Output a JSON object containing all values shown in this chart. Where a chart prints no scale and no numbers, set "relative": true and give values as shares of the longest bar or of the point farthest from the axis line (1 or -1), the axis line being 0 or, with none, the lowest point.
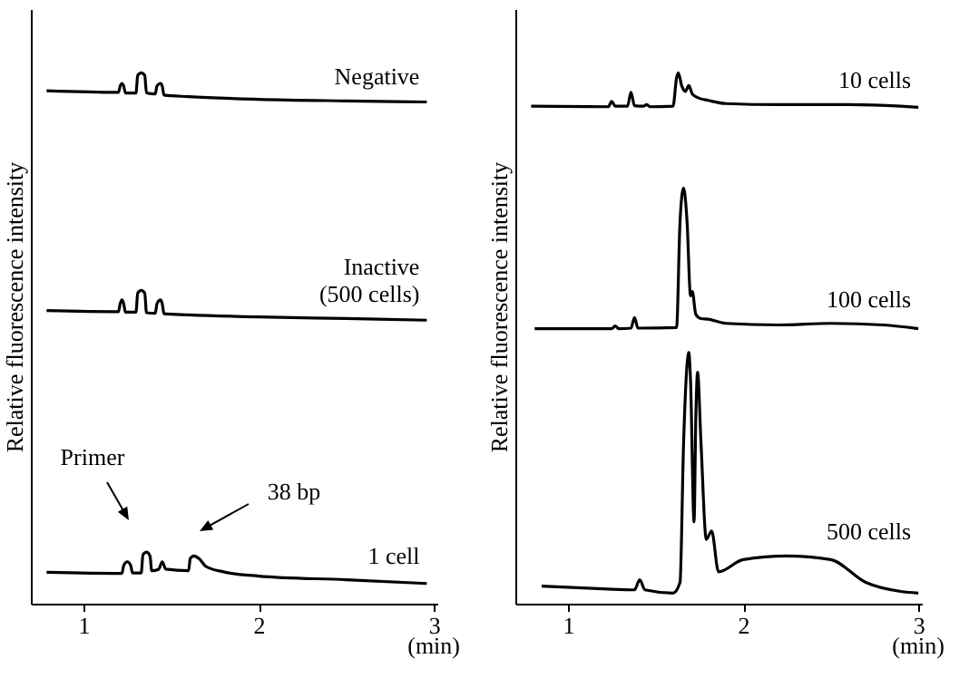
{
  "chart_data": [
    {
      "type": "line",
      "relative": true,
      "xlabel": "(min)",
      "ylabel": "Relative fluorescence intensity",
      "xlim": [
        0.7,
        3.02
      ],
      "xticks": [
        1,
        2,
        3
      ],
      "series": [
        {
          "name": "Negative",
          "color": "#000000",
          "x": [
            0.79,
            1.2,
            1.21,
            1.22,
            1.23,
            1.24,
            1.3,
            1.31,
            1.33,
            1.35,
            1.36,
            1.41,
            1.42,
            1.44,
            1.45,
            1.46,
            1.6,
            2.0,
            2.5,
            2.96
          ],
          "values": [
            0.966,
            0.963,
            0.975,
            0.98,
            0.975,
            0.962,
            0.962,
            0.995,
            1.0,
            0.995,
            0.962,
            0.96,
            0.975,
            0.98,
            0.975,
            0.958,
            0.955,
            0.95,
            0.947,
            0.945
          ]
        },
        {
          "name": "Inactive\n(500 cells)",
          "color": "#000000",
          "x": [
            0.79,
            1.2,
            1.21,
            1.22,
            1.23,
            1.24,
            1.3,
            1.31,
            1.33,
            1.35,
            1.36,
            1.41,
            1.42,
            1.44,
            1.45,
            1.46,
            1.6,
            2.0,
            2.5,
            2.96
          ],
          "values": [
            0.552,
            0.55,
            0.565,
            0.572,
            0.565,
            0.549,
            0.549,
            0.585,
            0.59,
            0.585,
            0.548,
            0.547,
            0.565,
            0.572,
            0.565,
            0.546,
            0.544,
            0.54,
            0.537,
            0.534
          ]
        },
        {
          "name": "1 cell",
          "color": "#000000",
          "x": [
            0.79,
            1.22,
            1.23,
            1.25,
            1.27,
            1.28,
            1.33,
            1.34,
            1.36,
            1.38,
            1.39,
            1.43,
            1.45,
            1.47,
            1.6,
            1.61,
            1.63,
            1.66,
            1.7,
            1.8,
            2.0,
            2.5,
            2.96
          ],
          "values": [
            0.059,
            0.057,
            0.072,
            0.079,
            0.072,
            0.058,
            0.058,
            0.092,
            0.097,
            0.09,
            0.062,
            0.065,
            0.079,
            0.065,
            0.062,
            0.085,
            0.09,
            0.085,
            0.07,
            0.06,
            0.052,
            0.045,
            0.038
          ]
        }
      ],
      "annotations": [
        "Primer",
        "38 bp"
      ]
    },
    {
      "type": "line",
      "relative": true,
      "xlabel": "(min)",
      "ylabel": "Relative fluorescence intensity",
      "xlim": [
        0.7,
        3.02
      ],
      "xticks": [
        1,
        2,
        3
      ],
      "series": [
        {
          "name": "10 cells",
          "color": "#000000",
          "x": [
            0.79,
            1.23,
            1.25,
            1.27,
            1.34,
            1.36,
            1.38,
            1.43,
            1.45,
            1.47,
            1.6,
            1.62,
            1.63,
            1.65,
            1.67,
            1.69,
            1.71,
            1.75,
            1.8,
            1.9,
            2.2,
            2.6,
            2.9,
            3.0
          ],
          "values": [
            0.937,
            0.936,
            0.946,
            0.937,
            0.937,
            0.963,
            0.938,
            0.937,
            0.94,
            0.936,
            0.937,
            0.99,
            1.0,
            0.975,
            0.965,
            0.976,
            0.96,
            0.952,
            0.948,
            0.942,
            0.94,
            0.94,
            0.937,
            0.935
          ]
        },
        {
          "name": "100 cells",
          "color": "#000000",
          "x": [
            0.81,
            1.25,
            1.27,
            1.29,
            1.36,
            1.38,
            1.4,
            1.62,
            1.64,
            1.66,
            1.68,
            1.7,
            1.71,
            1.73,
            1.76,
            1.8,
            1.9,
            2.2,
            2.5,
            2.8,
            3.0
          ],
          "values": [
            0.518,
            0.518,
            0.523,
            0.518,
            0.519,
            0.539,
            0.519,
            0.52,
            0.72,
            0.783,
            0.72,
            0.58,
            0.588,
            0.545,
            0.537,
            0.536,
            0.528,
            0.525,
            0.528,
            0.525,
            0.518
          ]
        },
        {
          "name": "500 cells",
          "color": "#000000",
          "x": [
            0.85,
            1.2,
            1.38,
            1.41,
            1.44,
            1.6,
            1.64,
            1.66,
            1.68,
            1.69,
            1.7,
            1.72,
            1.73,
            1.74,
            1.76,
            1.79,
            1.82,
            1.86,
            2.0,
            2.25,
            2.5,
            2.7,
            2.9,
            3.0
          ],
          "values": [
            0.033,
            0.028,
            0.026,
            0.045,
            0.026,
            0.02,
            0.04,
            0.3,
            0.45,
            0.473,
            0.42,
            0.154,
            0.35,
            0.436,
            0.3,
            0.121,
            0.137,
            0.06,
            0.083,
            0.09,
            0.083,
            0.04,
            0.023,
            0.02
          ]
        }
      ]
    }
  ]
}
